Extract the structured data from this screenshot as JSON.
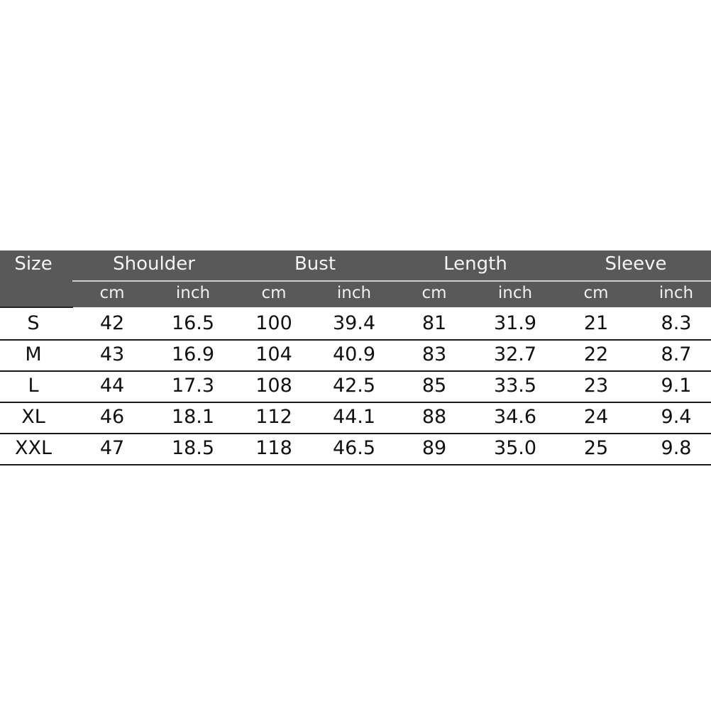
{
  "colors": {
    "header_bg": "#595959",
    "header_text": "#f4f4f4",
    "row_text": "#111111",
    "row_border": "#1a1a1a"
  },
  "table": {
    "size_header": "Size",
    "groups": [
      "Shoulder",
      "Bust",
      "Length",
      "Sleeve"
    ],
    "units": [
      "cm",
      "inch",
      "cm",
      "inch",
      "cm",
      "inch",
      "cm",
      "inch"
    ],
    "rows": [
      [
        "S",
        "42",
        "16.5",
        "100",
        "39.4",
        "81",
        "31.9",
        "21",
        "8.3"
      ],
      [
        "M",
        "43",
        "16.9",
        "104",
        "40.9",
        "83",
        "32.7",
        "22",
        "8.7"
      ],
      [
        "L",
        "44",
        "17.3",
        "108",
        "42.5",
        "85",
        "33.5",
        "23",
        "9.1"
      ],
      [
        "XL",
        "46",
        "18.1",
        "112",
        "44.1",
        "88",
        "34.6",
        "24",
        "9.4"
      ],
      [
        "XXL",
        "47",
        "18.5",
        "118",
        "46.5",
        "89",
        "35.0",
        "25",
        "9.8"
      ]
    ]
  }
}
